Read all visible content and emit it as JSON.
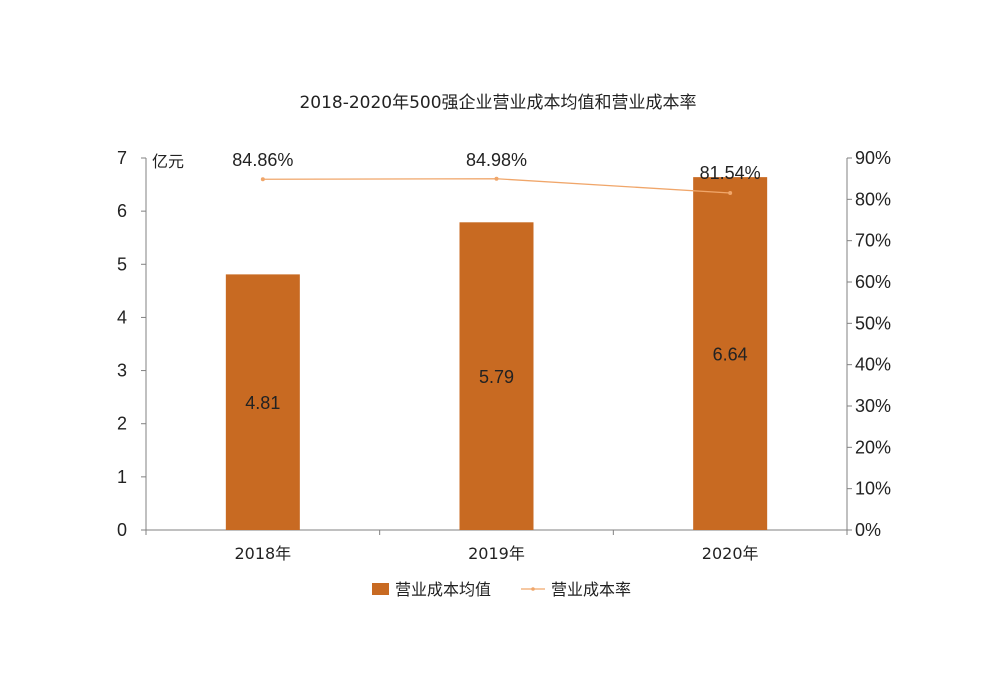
{
  "colors": {
    "bar": "#c86a22",
    "line": "#f0a66a",
    "axis": "#808080",
    "text": "#222222"
  },
  "chart_data": {
    "type": "bar",
    "title": "2018-2020年500强企业营业成本均值和营业成本率",
    "categories": [
      "2018年",
      "2019年",
      "2020年"
    ],
    "y_unit": "亿元",
    "y_ticks": [
      "0",
      "1",
      "2",
      "3",
      "4",
      "5",
      "6",
      "7"
    ],
    "y2_ticks": [
      "0%",
      "10%",
      "20%",
      "30%",
      "40%",
      "50%",
      "60%",
      "70%",
      "80%",
      "90%"
    ],
    "ylim": [
      0,
      7
    ],
    "y2lim": [
      0,
      90
    ],
    "series": [
      {
        "name": "营业成本均值",
        "type": "bar",
        "axis": "left",
        "values": [
          4.81,
          5.79,
          6.64
        ],
        "labels": [
          "4.81",
          "5.79",
          "6.64"
        ]
      },
      {
        "name": "营业成本率",
        "type": "line",
        "axis": "right",
        "values": [
          84.86,
          84.98,
          81.54
        ],
        "labels": [
          "84.86%",
          "84.98%",
          "81.54%"
        ]
      }
    ],
    "legend": "bottom",
    "grid": false
  }
}
